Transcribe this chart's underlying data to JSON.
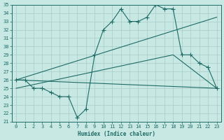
{
  "xlabel": "Humidex (Indice chaleur)",
  "xlim": [
    -0.5,
    23.5
  ],
  "ylim": [
    21,
    35
  ],
  "xticks": [
    0,
    1,
    2,
    3,
    4,
    5,
    6,
    7,
    8,
    9,
    10,
    11,
    12,
    13,
    14,
    15,
    16,
    17,
    18,
    19,
    20,
    21,
    22,
    23
  ],
  "yticks": [
    21,
    22,
    23,
    24,
    25,
    26,
    27,
    28,
    29,
    30,
    31,
    32,
    33,
    34,
    35
  ],
  "bg_color": "#c8e8e4",
  "line_color": "#1e6b65",
  "grid_color": "#a8ccc8",
  "line1_x": [
    0,
    1,
    2,
    3,
    4,
    5,
    6,
    7,
    8,
    9,
    10,
    11,
    12,
    13,
    14,
    15,
    16,
    17,
    18,
    19,
    20,
    21,
    22,
    23
  ],
  "line1_y": [
    26,
    26,
    25,
    25,
    24.5,
    24,
    24,
    21.5,
    22.5,
    29,
    32,
    33,
    34.5,
    33,
    33,
    33.5,
    35,
    34.5,
    34.5,
    29,
    29,
    28,
    27.5,
    25
  ],
  "line2_x": [
    0,
    23
  ],
  "line2_y": [
    26,
    25
  ],
  "line3_x": [
    0,
    23
  ],
  "line3_y": [
    26,
    33.5
  ],
  "line4_x": [
    0,
    18,
    23
  ],
  "line4_y": [
    25,
    29,
    25
  ]
}
